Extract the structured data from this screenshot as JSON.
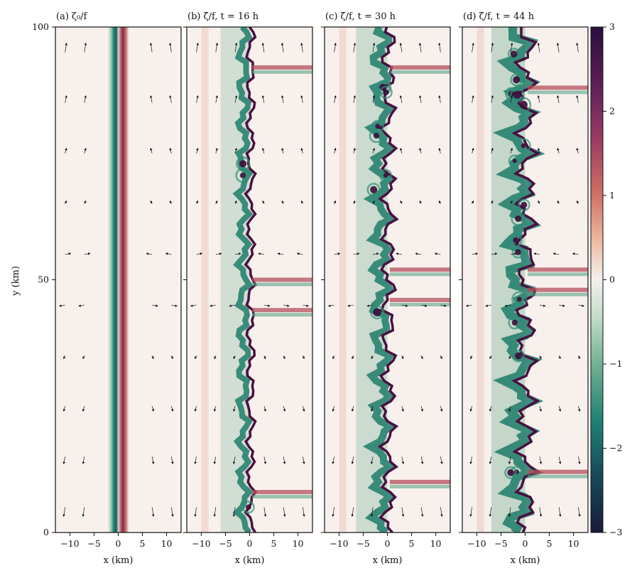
{
  "figure": {
    "ylabel": "y (km)",
    "panels": [
      {
        "title": "(a) ζ₀/f",
        "xlabel": "x (km)"
      },
      {
        "title": "(b) ζ̄/f, t = 16 h",
        "xlabel": "x (km)"
      },
      {
        "title": "(c) ζ̄/f, t = 30 h",
        "xlabel": "x (km)"
      },
      {
        "title": "(d) ζ̄/f, t = 44 h",
        "xlabel": "x (km)"
      }
    ],
    "colorbar": {
      "ticks": [
        "3",
        "2",
        "1",
        "0",
        "−1",
        "−2",
        "−3"
      ],
      "colors": [
        "#2a0f3d",
        "#7a2760",
        "#c25a5a",
        "#ebb39a",
        "#f6efe9",
        "#b9d6c0",
        "#5aa487",
        "#0f6e67",
        "#173b55",
        "#1a1a3a"
      ]
    }
  },
  "chart_data": {
    "type": "heatmap",
    "quantity": "normalized vorticity",
    "x_ticks": [
      "−10",
      "−5",
      "0",
      "5",
      "10"
    ],
    "y_ticks": [
      "0",
      "50",
      "100"
    ],
    "xlim": [
      -13,
      13
    ],
    "ylim": [
      0,
      100
    ],
    "clim": [
      -3,
      3
    ],
    "panels": [
      {
        "panel": "a",
        "time_h": 0,
        "structure": "straight front at x ≈ 0: negative band at x ≈ −1, positive band at x ≈ +1"
      },
      {
        "panel": "b",
        "time_h": 16,
        "structure": "front begins to wiggle; filaments near y ≈ 92, 50, 44, 8"
      },
      {
        "panel": "c",
        "time_h": 30,
        "structure": "meanders with eddies along front"
      },
      {
        "panel": "d",
        "time_h": 44,
        "structure": "fully turbulent front with coherent eddies"
      }
    ]
  }
}
